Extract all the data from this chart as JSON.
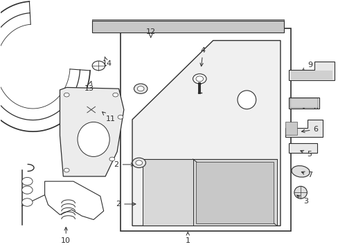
{
  "background_color": "#ffffff",
  "line_color": "#2d2d2d",
  "label_fontsize": 8,
  "figsize": [
    4.89,
    3.6
  ],
  "dpi": 100
}
